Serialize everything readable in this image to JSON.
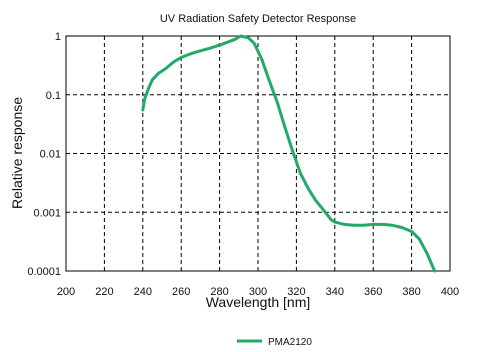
{
  "chart_data": {
    "type": "line",
    "title": "UV Radiation Safety Detector Response",
    "xlabel": "Wavelength [nm]",
    "ylabel": "Relative response",
    "xlim": [
      200,
      400
    ],
    "ylim": [
      0.0001,
      1
    ],
    "y_scale": "log",
    "grid": true,
    "legend_position": "bottom-center",
    "x_ticks": [
      "200",
      "220",
      "240",
      "260",
      "280",
      "300",
      "320",
      "340",
      "360",
      "380",
      "400"
    ],
    "y_ticks": [
      "1",
      "0.1",
      "0.01",
      "0.001",
      "0.0001"
    ],
    "series": [
      {
        "name": "PMA2120",
        "color": "#22aa66",
        "x": [
          240,
          241,
          243,
          245,
          248,
          252,
          256,
          260,
          265,
          270,
          275,
          280,
          284,
          288,
          291,
          295,
          298,
          302,
          306,
          310,
          314,
          318,
          322,
          326,
          330,
          334,
          338,
          340,
          345,
          350,
          355,
          360,
          365,
          370,
          375,
          380,
          384,
          388,
          392
        ],
        "y": [
          0.055,
          0.085,
          0.13,
          0.18,
          0.23,
          0.28,
          0.36,
          0.43,
          0.5,
          0.56,
          0.62,
          0.7,
          0.78,
          0.88,
          1.0,
          0.93,
          0.75,
          0.4,
          0.17,
          0.075,
          0.028,
          0.011,
          0.0047,
          0.0026,
          0.0016,
          0.0011,
          0.00075,
          0.00068,
          0.00062,
          0.0006,
          0.0006,
          0.00062,
          0.00062,
          0.0006,
          0.00055,
          0.00047,
          0.00035,
          0.0002,
          0.0001
        ]
      }
    ]
  }
}
